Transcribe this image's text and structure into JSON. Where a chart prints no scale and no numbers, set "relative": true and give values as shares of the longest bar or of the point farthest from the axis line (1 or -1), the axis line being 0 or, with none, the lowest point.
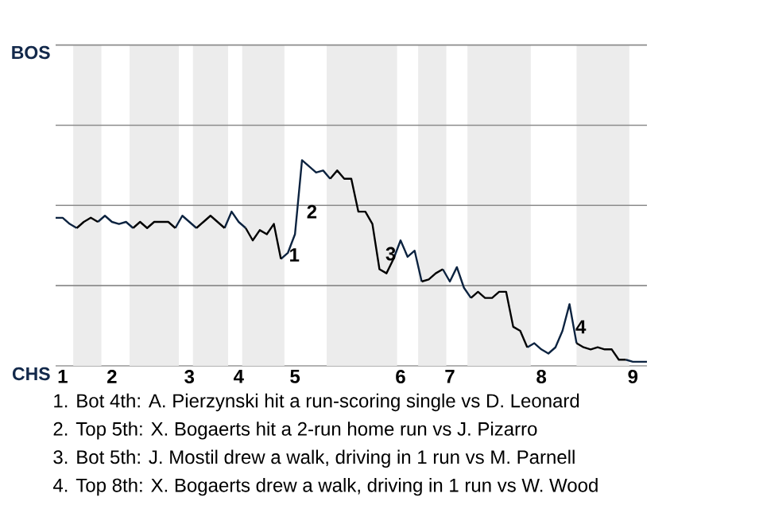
{
  "chart_data": {
    "type": "line",
    "relative": true,
    "categories": [
      null,
      "1",
      null,
      null,
      null,
      null,
      null,
      null,
      "2",
      null,
      null,
      null,
      null,
      null,
      null,
      null,
      null,
      null,
      null,
      "3",
      null,
      null,
      null,
      null,
      null,
      null,
      "4",
      null,
      null,
      null,
      null,
      null,
      null,
      null,
      "5",
      null,
      null,
      null,
      null,
      null,
      null,
      null,
      null,
      null,
      null,
      null,
      null,
      null,
      null,
      "6",
      null,
      null,
      null,
      null,
      null,
      null,
      "7",
      null,
      null,
      null,
      null,
      null,
      null,
      null,
      null,
      null,
      null,
      null,
      null,
      "8",
      null,
      null,
      null,
      null,
      null,
      null,
      null,
      null,
      null,
      null,
      null,
      null,
      "9",
      null,
      null
    ],
    "marker": "none",
    "line_style": "solid",
    "ref_lines": [
      {
        "axis": "y",
        "value": 0.39,
        "color": "#8c8c8c"
      },
      {
        "axis": "y",
        "value": 0.78,
        "color": "#8c8c8c"
      },
      {
        "axis": "y",
        "value": 1.17,
        "color": "#8c8c8c"
      },
      {
        "axis": "y",
        "value": 1.56,
        "color": "#8c8c8c"
      }
    ],
    "series": [
      {
        "color": "#0c2340",
        "values": [
          0.72,
          0.72,
          0.69,
          0.67,
          null,
          null,
          0.7,
          0.73,
          0.7,
          0.69,
          0.7,
          0.67,
          null,
          null,
          null,
          null,
          null,
          0.67,
          0.73,
          0.7,
          0.67,
          null,
          null,
          null,
          0.67,
          0.75,
          0.7,
          0.67,
          null,
          null,
          null,
          null,
          0.52,
          0.55,
          0.64,
          1,
          0.97,
          0.94,
          0.95,
          0.91,
          null,
          null,
          null,
          null,
          null,
          null,
          null,
          null,
          0.52,
          0.61,
          0.53,
          0.56,
          0.41,
          null,
          null,
          0.47,
          0.41,
          0.48,
          0.38,
          0.33,
          null,
          null,
          null,
          null,
          null,
          null,
          null,
          0.09,
          0.11,
          0.08,
          0.06,
          0.09,
          0.17,
          0.3,
          0.11,
          null,
          null,
          null,
          null,
          null,
          null,
          0.03,
          0.02,
          0.02,
          0.02
        ]
      },
      {
        "color": "#000000",
        "values": [
          null,
          null,
          null,
          0.67,
          0.7,
          0.72,
          0.7,
          null,
          null,
          null,
          null,
          0.67,
          0.7,
          0.67,
          0.7,
          0.7,
          0.7,
          0.67,
          null,
          null,
          0.67,
          0.7,
          0.73,
          0.7,
          0.67,
          null,
          null,
          0.67,
          0.61,
          0.66,
          0.64,
          0.69,
          0.52,
          null,
          null,
          null,
          null,
          null,
          null,
          0.91,
          0.95,
          0.91,
          0.91,
          0.75,
          0.75,
          0.69,
          0.47,
          0.45,
          0.52,
          null,
          null,
          null,
          0.41,
          0.42,
          0.45,
          0.47,
          null,
          null,
          null,
          0.33,
          0.36,
          0.33,
          0.33,
          0.36,
          0.36,
          0.19,
          0.17,
          0.09,
          null,
          null,
          null,
          null,
          null,
          null,
          0.11,
          0.09,
          0.08,
          0.09,
          0.08,
          0.08,
          0.03,
          0.03,
          null,
          null,
          null
        ]
      }
    ],
    "annotations": [
      "BOS",
      "CHS",
      "1",
      "2",
      "3",
      "4",
      "1. Bot 4th: A. Pierzynski hit a run-scoring single vs D. Leonard",
      "2. Top 5th: X. Bogaerts hit a 2-run home run vs J. Pizarro",
      "3. Bot 5th: J. Mostil drew a walk, driving in 1 run vs M. Parnell",
      "4. Top 8th: X. Bogaerts drew a walk, driving in 1 run vs W. Wood"
    ]
  }
}
